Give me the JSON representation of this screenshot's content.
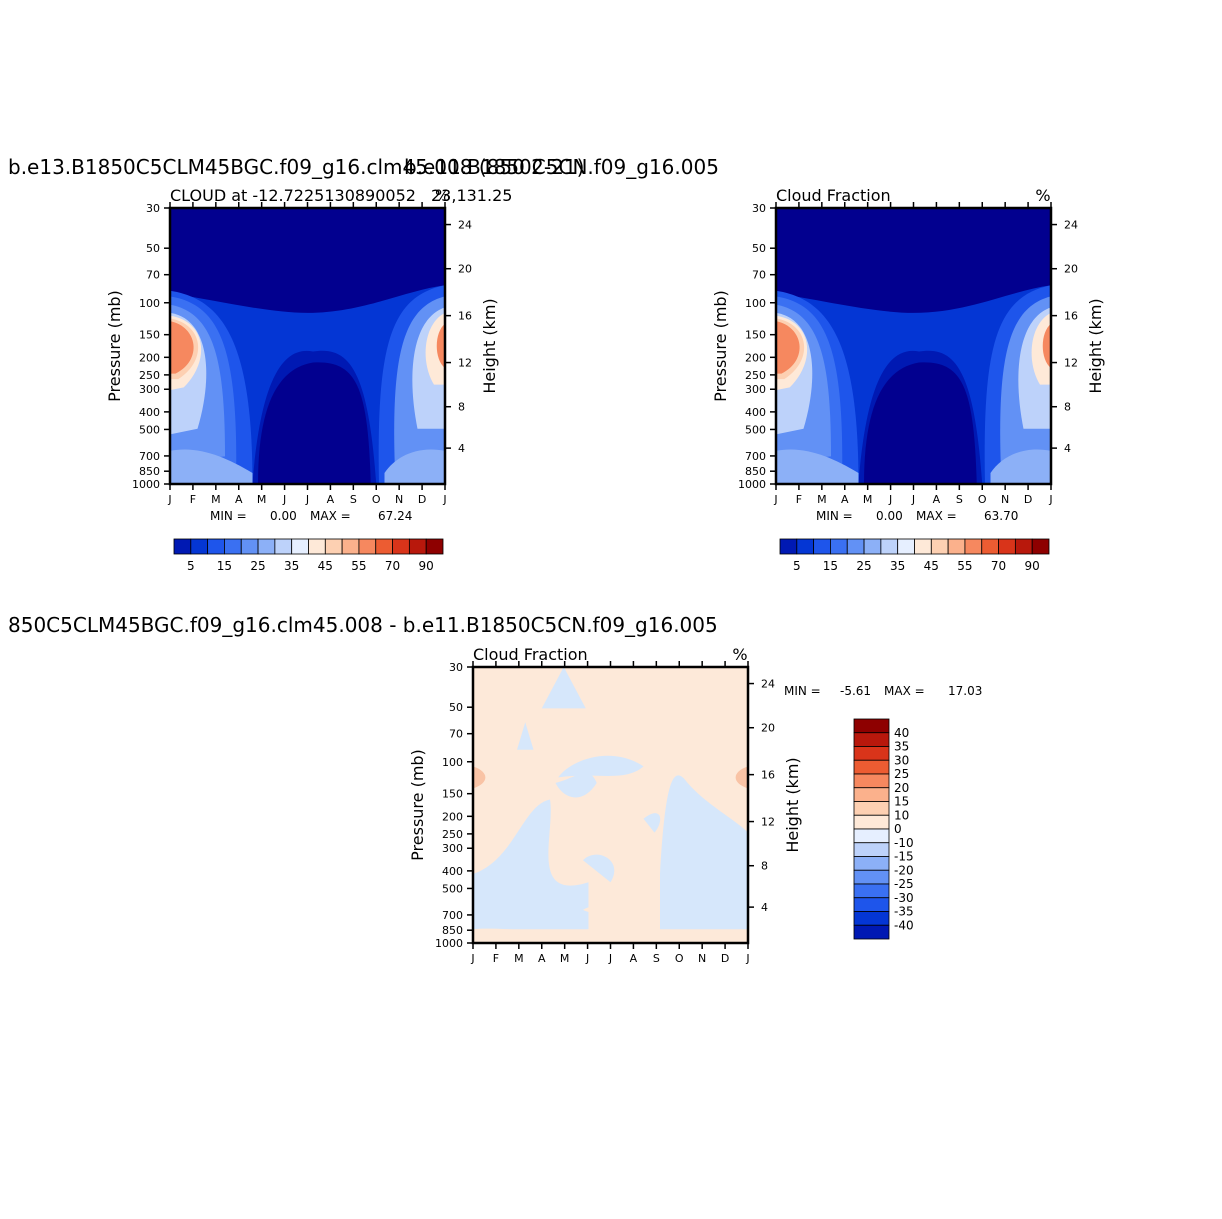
{
  "page": {
    "title_left": "b.e13.B1850C5CLM45BGC.f09_g16.clm45.008 (850 2-21)",
    "title_right": "b.e11.B1850C5CN.f09_g16.005",
    "title_bottom": "850C5CLM45BGC.f09_g16.clm45.008 - b.e11.B1850C5CN.f09_g16.005"
  },
  "chart_data": [
    {
      "type": "heatmap",
      "panel": "left",
      "subtitle_left": "CLOUD at -12.7225130890052",
      "subtitle_right": "23,131.25",
      "unit": "%",
      "ylabel": "Pressure (mb)",
      "ylabel_right": "Height (km)",
      "x_ticks": [
        "J",
        "F",
        "M",
        "A",
        "M",
        "J",
        "J",
        "A",
        "S",
        "O",
        "N",
        "D",
        "J"
      ],
      "pressure_ticks": [
        "30",
        "50",
        "70",
        "100",
        "150",
        "200",
        "250",
        "300",
        "400",
        "500",
        "700",
        "850",
        "1000"
      ],
      "height_ticks": [
        "24",
        "20",
        "16",
        "12",
        "8",
        "4"
      ],
      "min_label": "MIN =",
      "min_value": "0.00",
      "max_label": "MAX =",
      "max_value": "67.24",
      "colorbar_labels": [
        "5",
        "15",
        "25",
        "35",
        "45",
        "55",
        "70",
        "90"
      ],
      "colorbar_levels": [
        5,
        10,
        15,
        20,
        25,
        30,
        35,
        40,
        45,
        50,
        55,
        60,
        70,
        80,
        90
      ],
      "ylim": [
        30,
        1000
      ],
      "max_cloud": 67.24
    },
    {
      "type": "heatmap",
      "panel": "right",
      "subtitle_left": "Cloud Fraction",
      "subtitle_right": "%",
      "unit": "%",
      "ylabel": "Pressure (mb)",
      "ylabel_right": "Height (km)",
      "x_ticks": [
        "J",
        "F",
        "M",
        "A",
        "M",
        "J",
        "J",
        "A",
        "S",
        "O",
        "N",
        "D",
        "J"
      ],
      "pressure_ticks": [
        "30",
        "50",
        "70",
        "100",
        "150",
        "200",
        "250",
        "300",
        "400",
        "500",
        "700",
        "850",
        "1000"
      ],
      "height_ticks": [
        "24",
        "20",
        "16",
        "12",
        "8",
        "4"
      ],
      "min_label": "MIN =",
      "min_value": "0.00",
      "max_label": "MAX =",
      "max_value": "63.70",
      "colorbar_labels": [
        "5",
        "15",
        "25",
        "35",
        "45",
        "55",
        "70",
        "90"
      ],
      "colorbar_levels": [
        5,
        10,
        15,
        20,
        25,
        30,
        35,
        40,
        45,
        50,
        55,
        60,
        70,
        80,
        90
      ],
      "ylim": [
        30,
        1000
      ],
      "max_cloud": 63.7
    },
    {
      "type": "heatmap",
      "panel": "difference",
      "subtitle_left": "Cloud Fraction",
      "subtitle_right": "%",
      "unit": "%",
      "ylabel": "Pressure (mb)",
      "ylabel_right": "Height (km)",
      "x_ticks": [
        "J",
        "F",
        "M",
        "A",
        "M",
        "J",
        "J",
        "A",
        "S",
        "O",
        "N",
        "D",
        "J"
      ],
      "pressure_ticks": [
        "30",
        "50",
        "70",
        "100",
        "150",
        "200",
        "250",
        "300",
        "400",
        "500",
        "700",
        "850",
        "1000"
      ],
      "height_ticks": [
        "24",
        "20",
        "16",
        "12",
        "8",
        "4"
      ],
      "min_label": "MIN =",
      "min_value": "-5.61",
      "max_label": "MAX =",
      "max_value": "17.03",
      "colorbar_labels": [
        "40",
        "35",
        "30",
        "25",
        "20",
        "15",
        "10",
        "0",
        "-10",
        "-15",
        "-20",
        "-25",
        "-30",
        "-35",
        "-40"
      ],
      "ylim": [
        30,
        1000
      ]
    }
  ],
  "colors": {
    "scale": [
      "#02008f",
      "#0019b3",
      "#0436d4",
      "#1e55eb",
      "#3a70f2",
      "#6291f5",
      "#8cb0f7",
      "#bdd2fa",
      "#e6efff",
      "#fee9d8",
      "#fdd0b2",
      "#fbb18c",
      "#f6885f",
      "#ec5c32",
      "#d9341a",
      "#b8180c",
      "#8e0000"
    ],
    "diff_neg": "#d6e7fb",
    "diff_pos": "#fde9d9",
    "diff_hot": "#f9c3a5"
  }
}
